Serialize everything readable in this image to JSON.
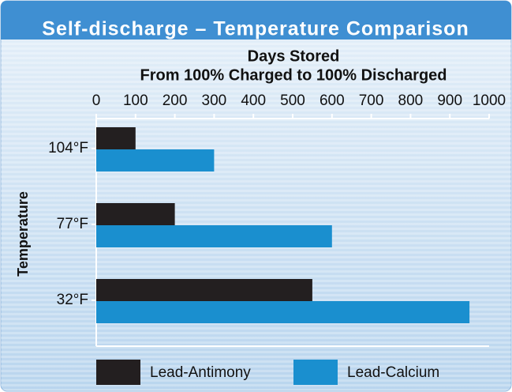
{
  "chart_data": {
    "type": "hbar",
    "title": "Self-discharge – Temperature Comparison",
    "xlabel": "Days Stored",
    "xlabel_sub": "From 100% Charged to 100% Discharged",
    "ylabel": "Temperature",
    "categories": [
      "104°F",
      "77°F",
      "32°F"
    ],
    "series": [
      {
        "name": "Lead-Antimony",
        "color": "#231f20",
        "values": [
          100,
          200,
          550
        ]
      },
      {
        "name": "Lead-Calcium",
        "color": "#1a8fcf",
        "values": [
          300,
          600,
          950
        ]
      }
    ],
    "xlim": [
      0,
      1000
    ],
    "xticks": [
      0,
      100,
      200,
      300,
      400,
      500,
      600,
      700,
      800,
      900,
      1000
    ],
    "legend": "bottom"
  }
}
